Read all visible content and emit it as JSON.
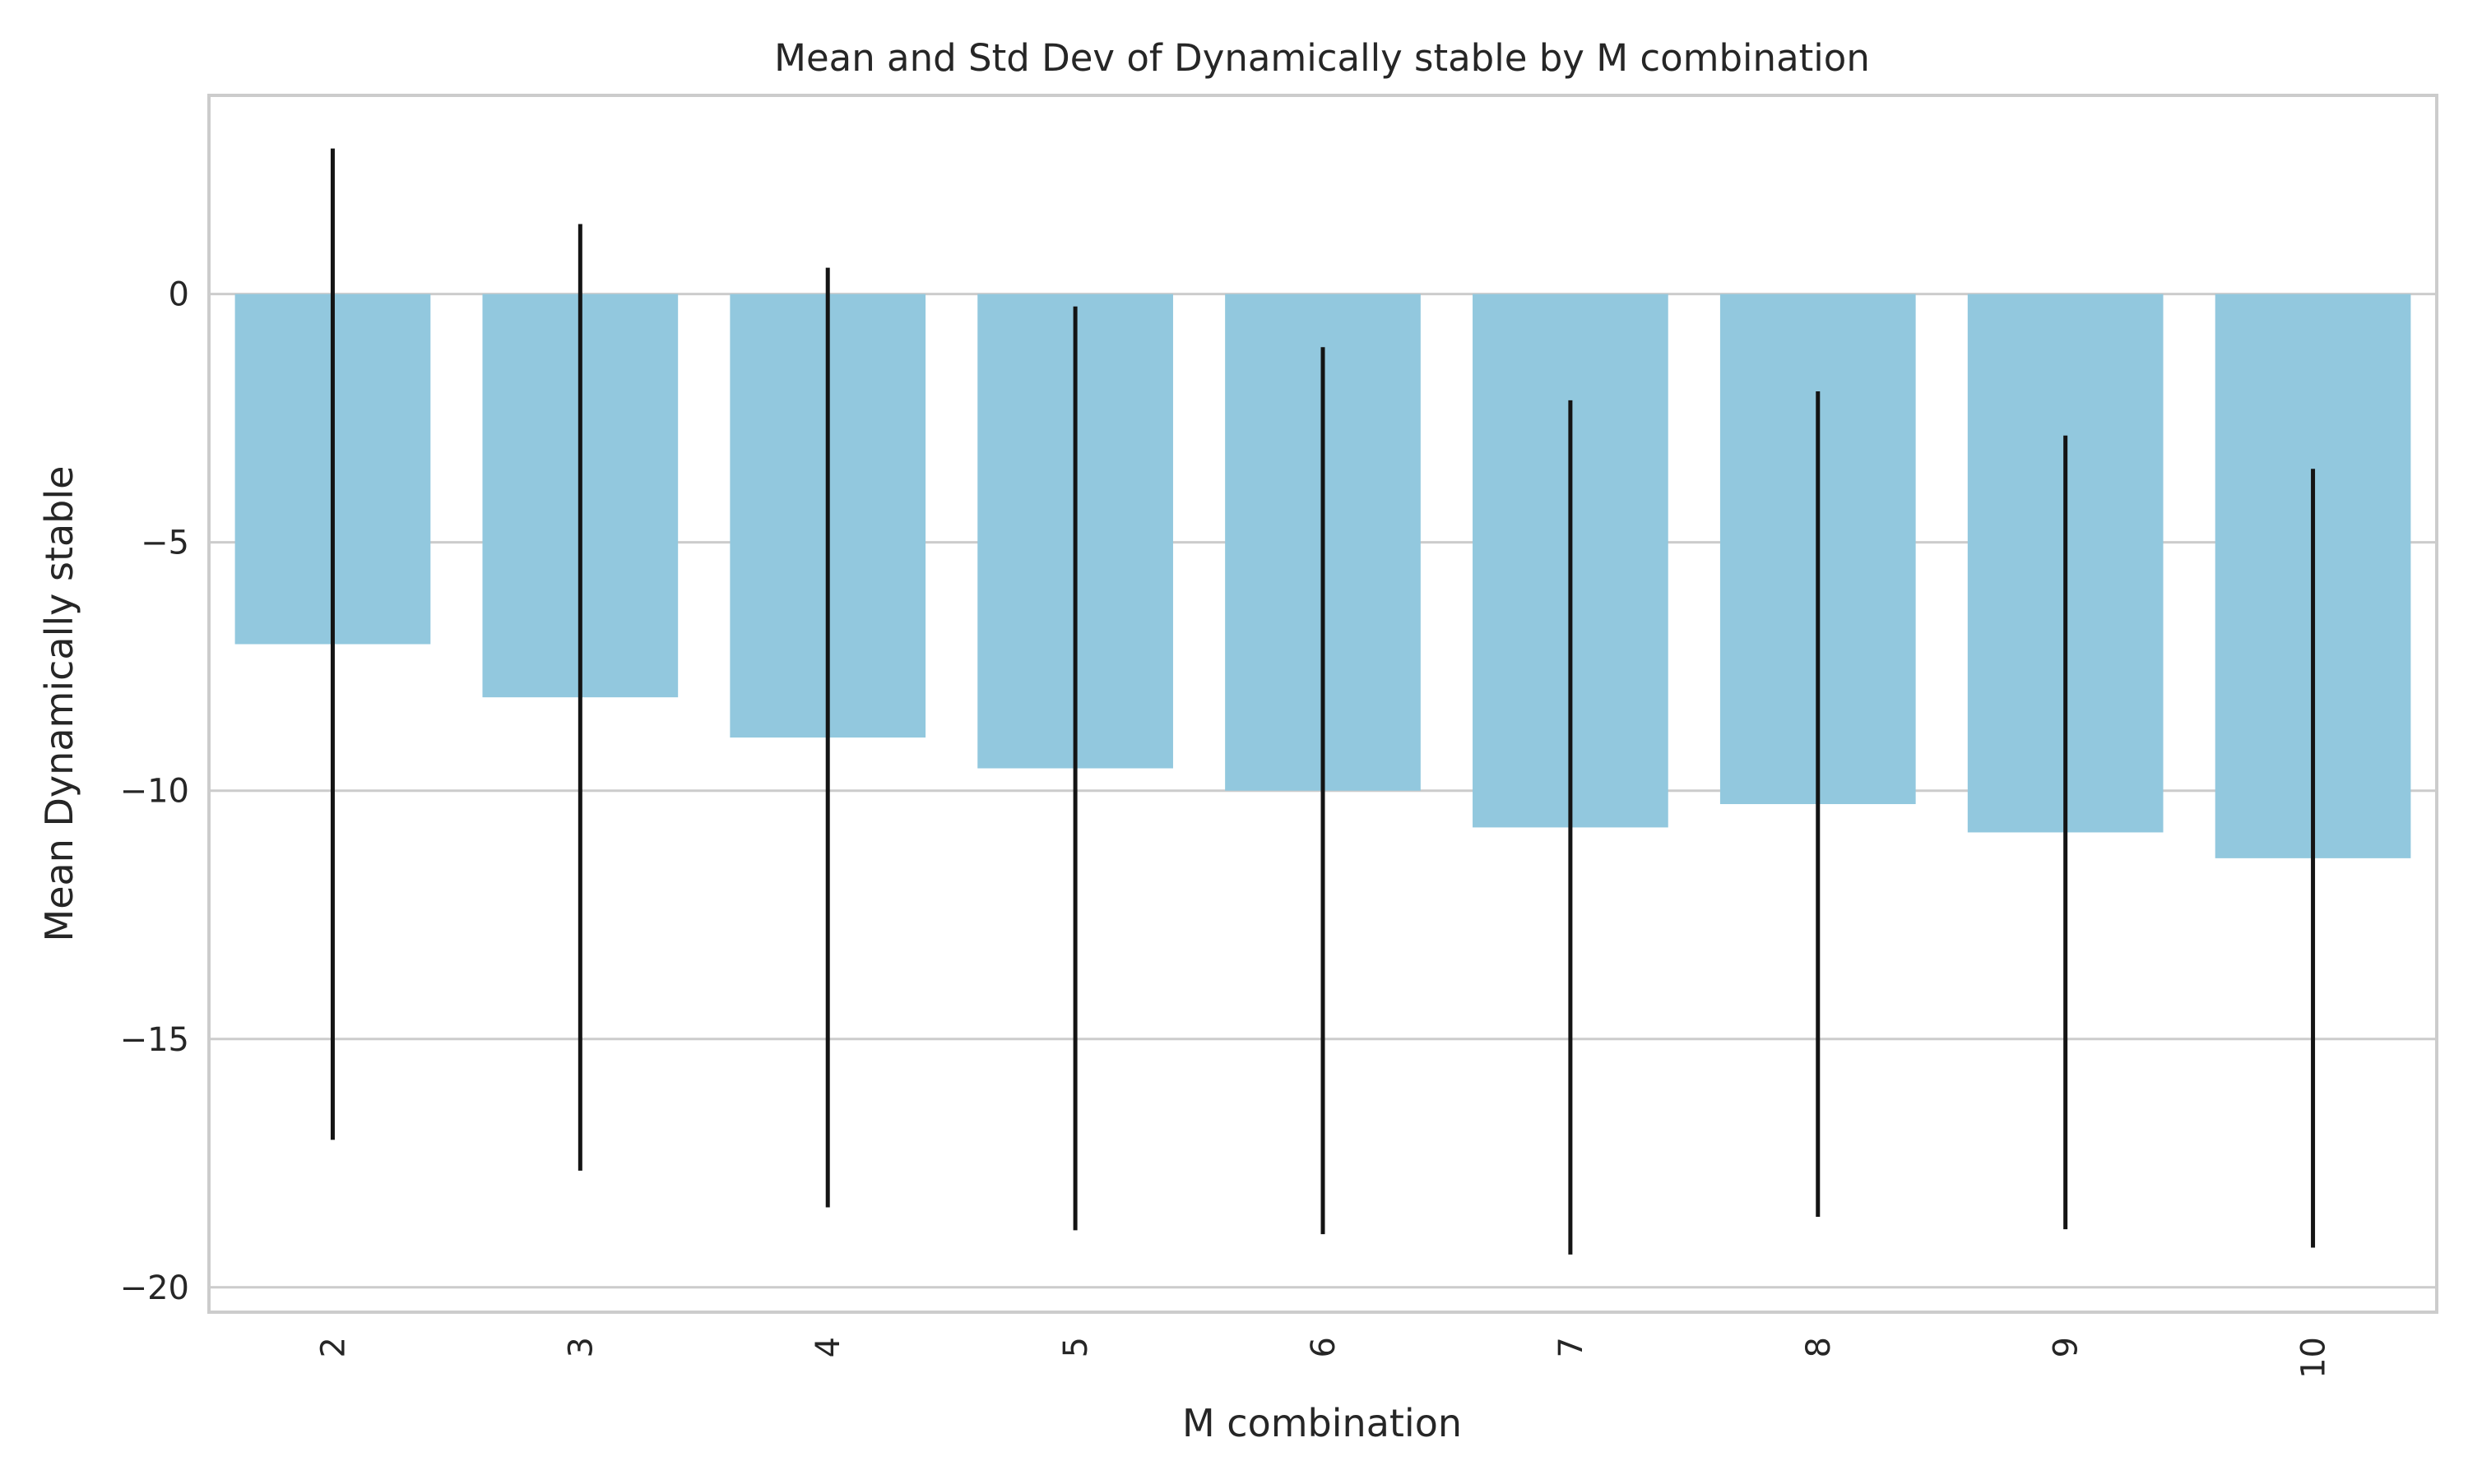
{
  "chart_data": {
    "type": "bar",
    "title": "Mean and Std Dev of Dynamically stable by M combination",
    "xlabel": "M combination",
    "ylabel": "Mean Dynamically stable",
    "categories": [
      "2",
      "3",
      "4",
      "5",
      "6",
      "7",
      "8",
      "9",
      "10"
    ],
    "values": [
      -7.05,
      -8.12,
      -8.93,
      -9.55,
      -10.0,
      -10.74,
      -10.27,
      -10.84,
      -11.36
    ],
    "error": [
      9.98,
      9.53,
      9.46,
      9.3,
      8.93,
      8.6,
      8.31,
      7.99,
      7.84
    ],
    "ylim": [
      -20.5,
      4.0
    ],
    "yticks": [
      0,
      -5,
      -10,
      -15,
      -20
    ],
    "ytick_labels": [
      "0",
      "−5",
      "−10",
      "−15",
      "−20"
    ],
    "bar_color": "#92c8de",
    "error_color": "#141414",
    "grid": true,
    "xtick_rotation": "vertical"
  }
}
